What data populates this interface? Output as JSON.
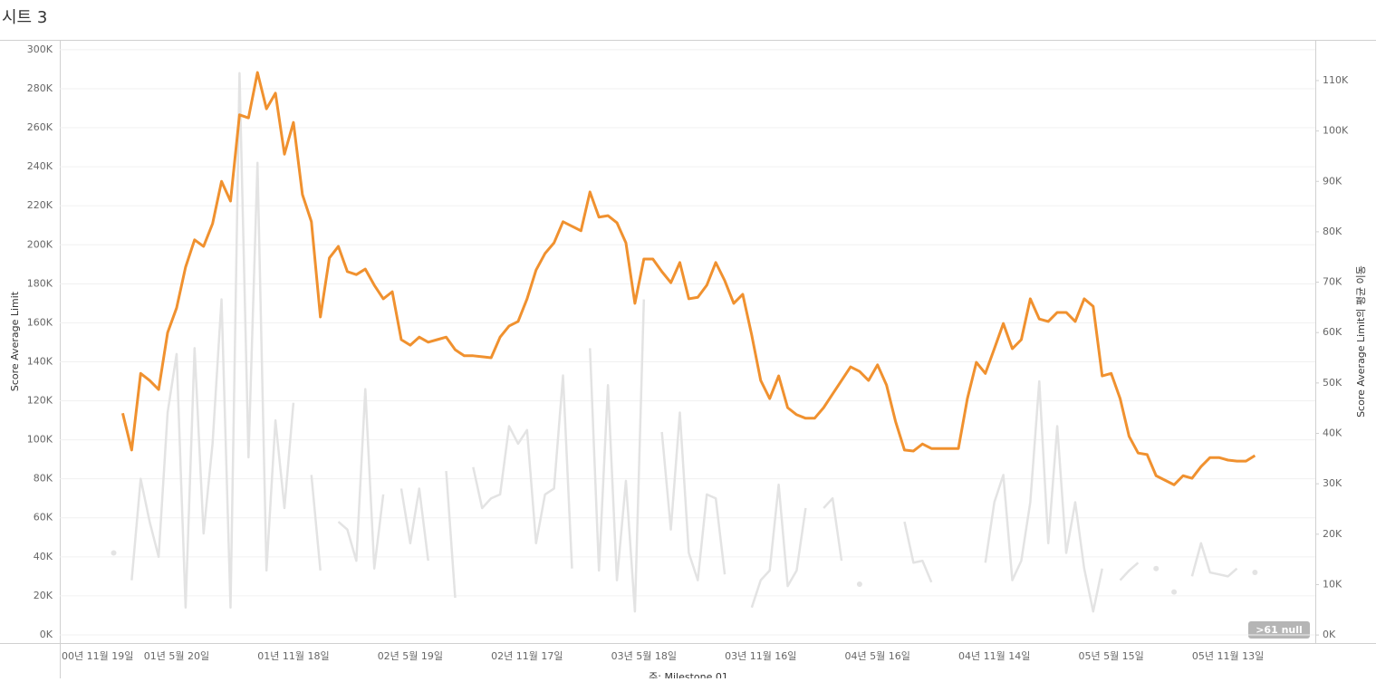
{
  "sheet_title": "시트 3",
  "chart_data": {
    "type": "line",
    "ylabel": "Score Average Limit",
    "y2label": "Score Average Limit의 평균 이동",
    "xlabel": "주: Milestone 01",
    "badge": ">61 null",
    "categories": [
      "00년 11월 19일",
      null,
      null,
      null,
      null,
      null,
      null,
      null,
      null,
      null,
      null,
      null,
      null,
      "01년 5월 20일",
      null,
      null,
      null,
      null,
      null,
      null,
      null,
      null,
      null,
      null,
      null,
      null,
      "01년 11월 18일",
      null,
      null,
      null,
      null,
      null,
      null,
      null,
      null,
      null,
      null,
      null,
      null,
      "02년 5월 19일",
      null,
      null,
      null,
      null,
      null,
      null,
      null,
      null,
      null,
      null,
      null,
      null,
      "02년 11월 17일",
      null,
      null,
      null,
      null,
      null,
      null,
      null,
      null,
      null,
      null,
      null,
      null,
      "03년 5월 18일",
      null,
      null,
      null,
      null,
      null,
      null,
      null,
      null,
      null,
      null,
      null,
      null,
      "03년 11월 16일",
      null,
      null,
      null,
      null,
      null,
      null,
      null,
      null,
      null,
      null,
      null,
      null,
      "04년 5월 16일",
      null,
      null,
      null,
      null,
      null,
      null,
      null,
      null,
      null,
      null,
      null,
      null,
      "04년 11월 14일",
      null,
      null,
      null,
      null,
      null,
      null,
      null,
      null,
      null,
      null,
      null,
      null,
      "05년 5월 15일",
      null,
      null,
      null,
      null,
      null,
      null,
      null,
      null,
      null,
      null,
      null,
      null,
      "05년 11월 13일",
      null,
      null,
      null
    ],
    "series": [
      {
        "color": "#e3e3e3",
        "values": [
          null,
          null,
          null,
          null,
          null,
          null,
          42000,
          null,
          28000,
          80000,
          58000,
          40000,
          114000,
          144000,
          14000,
          147000,
          52000,
          98000,
          172000,
          14000,
          288000,
          91000,
          242000,
          33000,
          110000,
          65000,
          119000,
          null,
          82000,
          33000,
          null,
          58000,
          54000,
          38000,
          126000,
          34000,
          72000,
          null,
          75000,
          47000,
          75000,
          38000,
          null,
          84000,
          19000,
          null,
          86000,
          65000,
          70000,
          72000,
          107000,
          98000,
          105000,
          47000,
          72000,
          75000,
          133000,
          34000,
          null,
          147000,
          33000,
          128000,
          28000,
          79000,
          12000,
          172000,
          null,
          104000,
          54000,
          114000,
          42000,
          28000,
          72000,
          70000,
          31000,
          null,
          null,
          14000,
          28000,
          33000,
          77000,
          25000,
          33000,
          65000,
          null,
          65000,
          70000,
          38000,
          null,
          26000,
          null,
          null,
          null,
          null,
          58000,
          37000,
          38000,
          27000,
          null,
          null,
          null,
          null,
          null,
          37000,
          68000,
          82000,
          28000,
          38000,
          68000,
          130000,
          47000,
          107000,
          42000,
          68000,
          34000,
          12000,
          34000,
          null,
          28000,
          33000,
          37000,
          null,
          34000,
          null,
          22000,
          null,
          30000,
          47000,
          32000,
          31000,
          30000,
          34000,
          null,
          32000
        ]
      },
      {
        "color": "#f0912f",
        "axis": "y2",
        "values": [
          null,
          null,
          null,
          null,
          null,
          null,
          null,
          44000,
          36700,
          51900,
          50500,
          48700,
          60000,
          64900,
          73000,
          78400,
          77100,
          81600,
          90000,
          86100,
          103200,
          102600,
          111600,
          104400,
          107500,
          95400,
          101700,
          87400,
          82000,
          63100,
          74800,
          77100,
          72100,
          71500,
          72600,
          69400,
          66700,
          68100,
          58600,
          57500,
          59100,
          58100,
          58600,
          59100,
          56600,
          55400,
          55400,
          55200,
          55000,
          59100,
          61300,
          62200,
          66700,
          72400,
          75700,
          77800,
          82000,
          81100,
          80200,
          87900,
          82900,
          83200,
          81800,
          77800,
          65800,
          74600,
          74600,
          72100,
          69900,
          73900,
          66700,
          67000,
          69400,
          73900,
          70300,
          65800,
          67600,
          59500,
          50500,
          46900,
          51400,
          45100,
          43700,
          43000,
          43000,
          45100,
          47800,
          50500,
          53200,
          52300,
          50500,
          53600,
          49600,
          42400,
          36700,
          36500,
          37900,
          37000,
          37000,
          37000,
          37000,
          46900,
          54100,
          51900,
          56800,
          61800,
          56800,
          58600,
          66700,
          62700,
          62200,
          64000,
          64000,
          62200,
          66700,
          65200,
          51400,
          51900,
          46900,
          39400,
          36100,
          35800,
          31600,
          30700,
          29800,
          31600,
          31100,
          33400,
          35200,
          35200,
          34700,
          34500,
          34500,
          35600
        ]
      }
    ],
    "ylim": [
      -4200,
      304600
    ],
    "yticks": [
      {
        "value": 0,
        "label": "0K"
      },
      {
        "value": 20000,
        "label": "20K"
      },
      {
        "value": 40000,
        "label": "40K"
      },
      {
        "value": 60000,
        "label": "60K"
      },
      {
        "value": 80000,
        "label": "80K"
      },
      {
        "value": 100000,
        "label": "100K"
      },
      {
        "value": 120000,
        "label": "120K"
      },
      {
        "value": 140000,
        "label": "140K"
      },
      {
        "value": 160000,
        "label": "160K"
      },
      {
        "value": 180000,
        "label": "180K"
      },
      {
        "value": 200000,
        "label": "200K"
      },
      {
        "value": 220000,
        "label": "220K"
      },
      {
        "value": 240000,
        "label": "240K"
      },
      {
        "value": 260000,
        "label": "260K"
      },
      {
        "value": 280000,
        "label": "280K"
      },
      {
        "value": 300000,
        "label": "300K"
      }
    ],
    "y2lim": [
      -1600,
      117900
    ],
    "y2ticks": [
      {
        "value": 0,
        "label": "0K"
      },
      {
        "value": 10000,
        "label": "10K"
      },
      {
        "value": 20000,
        "label": "20K"
      },
      {
        "value": 30000,
        "label": "30K"
      },
      {
        "value": 40000,
        "label": "40K"
      },
      {
        "value": 50000,
        "label": "50K"
      },
      {
        "value": 60000,
        "label": "60K"
      },
      {
        "value": 70000,
        "label": "70K"
      },
      {
        "value": 80000,
        "label": "80K"
      },
      {
        "value": 90000,
        "label": "90K"
      },
      {
        "value": 100000,
        "label": "100K"
      },
      {
        "value": 110000,
        "label": "110K"
      }
    ],
    "grid": true
  }
}
